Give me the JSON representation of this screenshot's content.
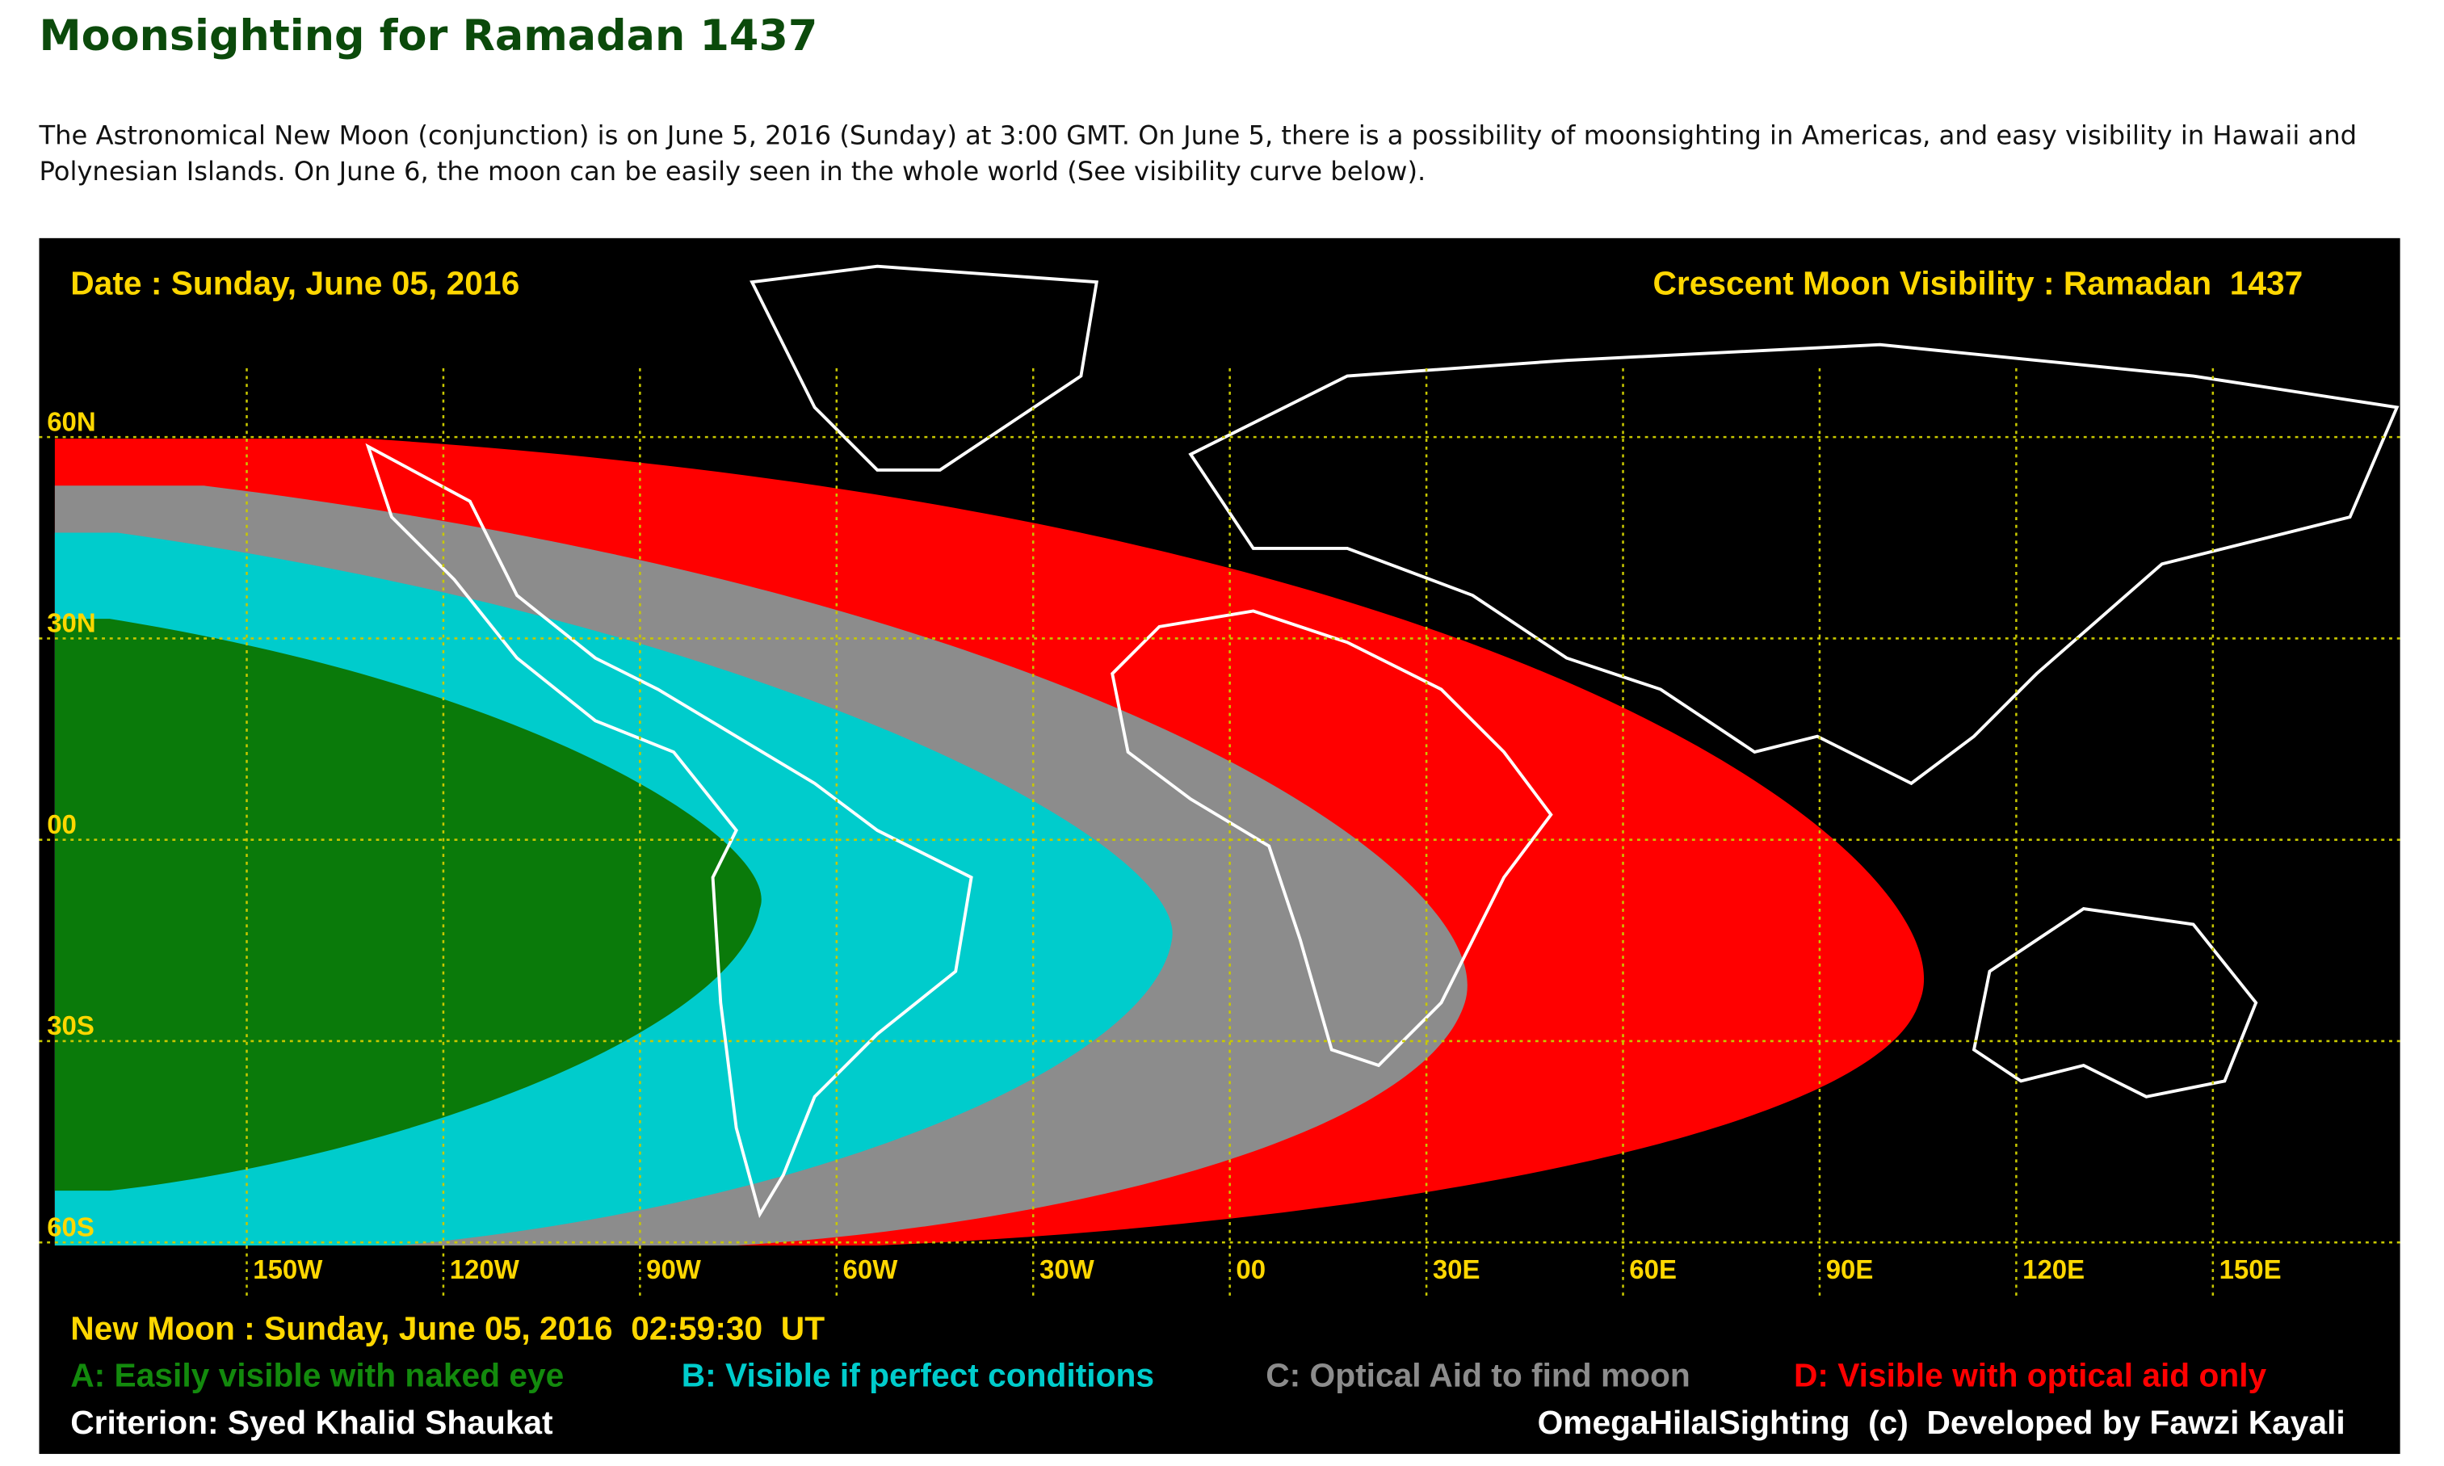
{
  "header": {
    "title": "Moonsighting for Ramadan 1437"
  },
  "intro": "The Astronomical New Moon (conjunction) is on June 5, 2016 (Sunday) at 3:00 GMT. On June 5, there is a possibility of moonsighting in Americas, and easy visibility in Hawaii and Polynesian Islands. On June 6, the moon can be easily seen in the whole world (See visibility curve below).",
  "map": {
    "date": "Date : Sunday, June 05, 2016",
    "title": "Crescent Moon Visibility : Ramadan  1437",
    "lat_ticks": [
      {
        "value": 60,
        "label": "60N"
      },
      {
        "value": 30,
        "label": "30N"
      },
      {
        "value": 0,
        "label": "00"
      },
      {
        "value": -30,
        "label": "30S"
      },
      {
        "value": -60,
        "label": "60S"
      }
    ],
    "lon_ticks": [
      {
        "value": -150,
        "label": "150W"
      },
      {
        "value": -120,
        "label": "120W"
      },
      {
        "value": -90,
        "label": "90W"
      },
      {
        "value": -60,
        "label": "60W"
      },
      {
        "value": -30,
        "label": "30W"
      },
      {
        "value": 0,
        "label": "00"
      },
      {
        "value": 30,
        "label": "30E"
      },
      {
        "value": 60,
        "label": "60E"
      },
      {
        "value": 90,
        "label": "90E"
      },
      {
        "value": 120,
        "label": "120E"
      },
      {
        "value": 150,
        "label": "150E"
      }
    ],
    "new_moon": "New Moon : Sunday, June 05, 2016  02:59:30  UT",
    "legend": [
      "A: Easily visible with naked eye",
      "B: Visible if perfect conditions",
      "C: Optical Aid to find moon",
      "D: Visible with optical aid only"
    ],
    "criterion": "Criterion: Syed Khalid Shaukat",
    "credit": "OmegaHilalSighting  (c)  Developed by Fawzi Kayali"
  }
}
